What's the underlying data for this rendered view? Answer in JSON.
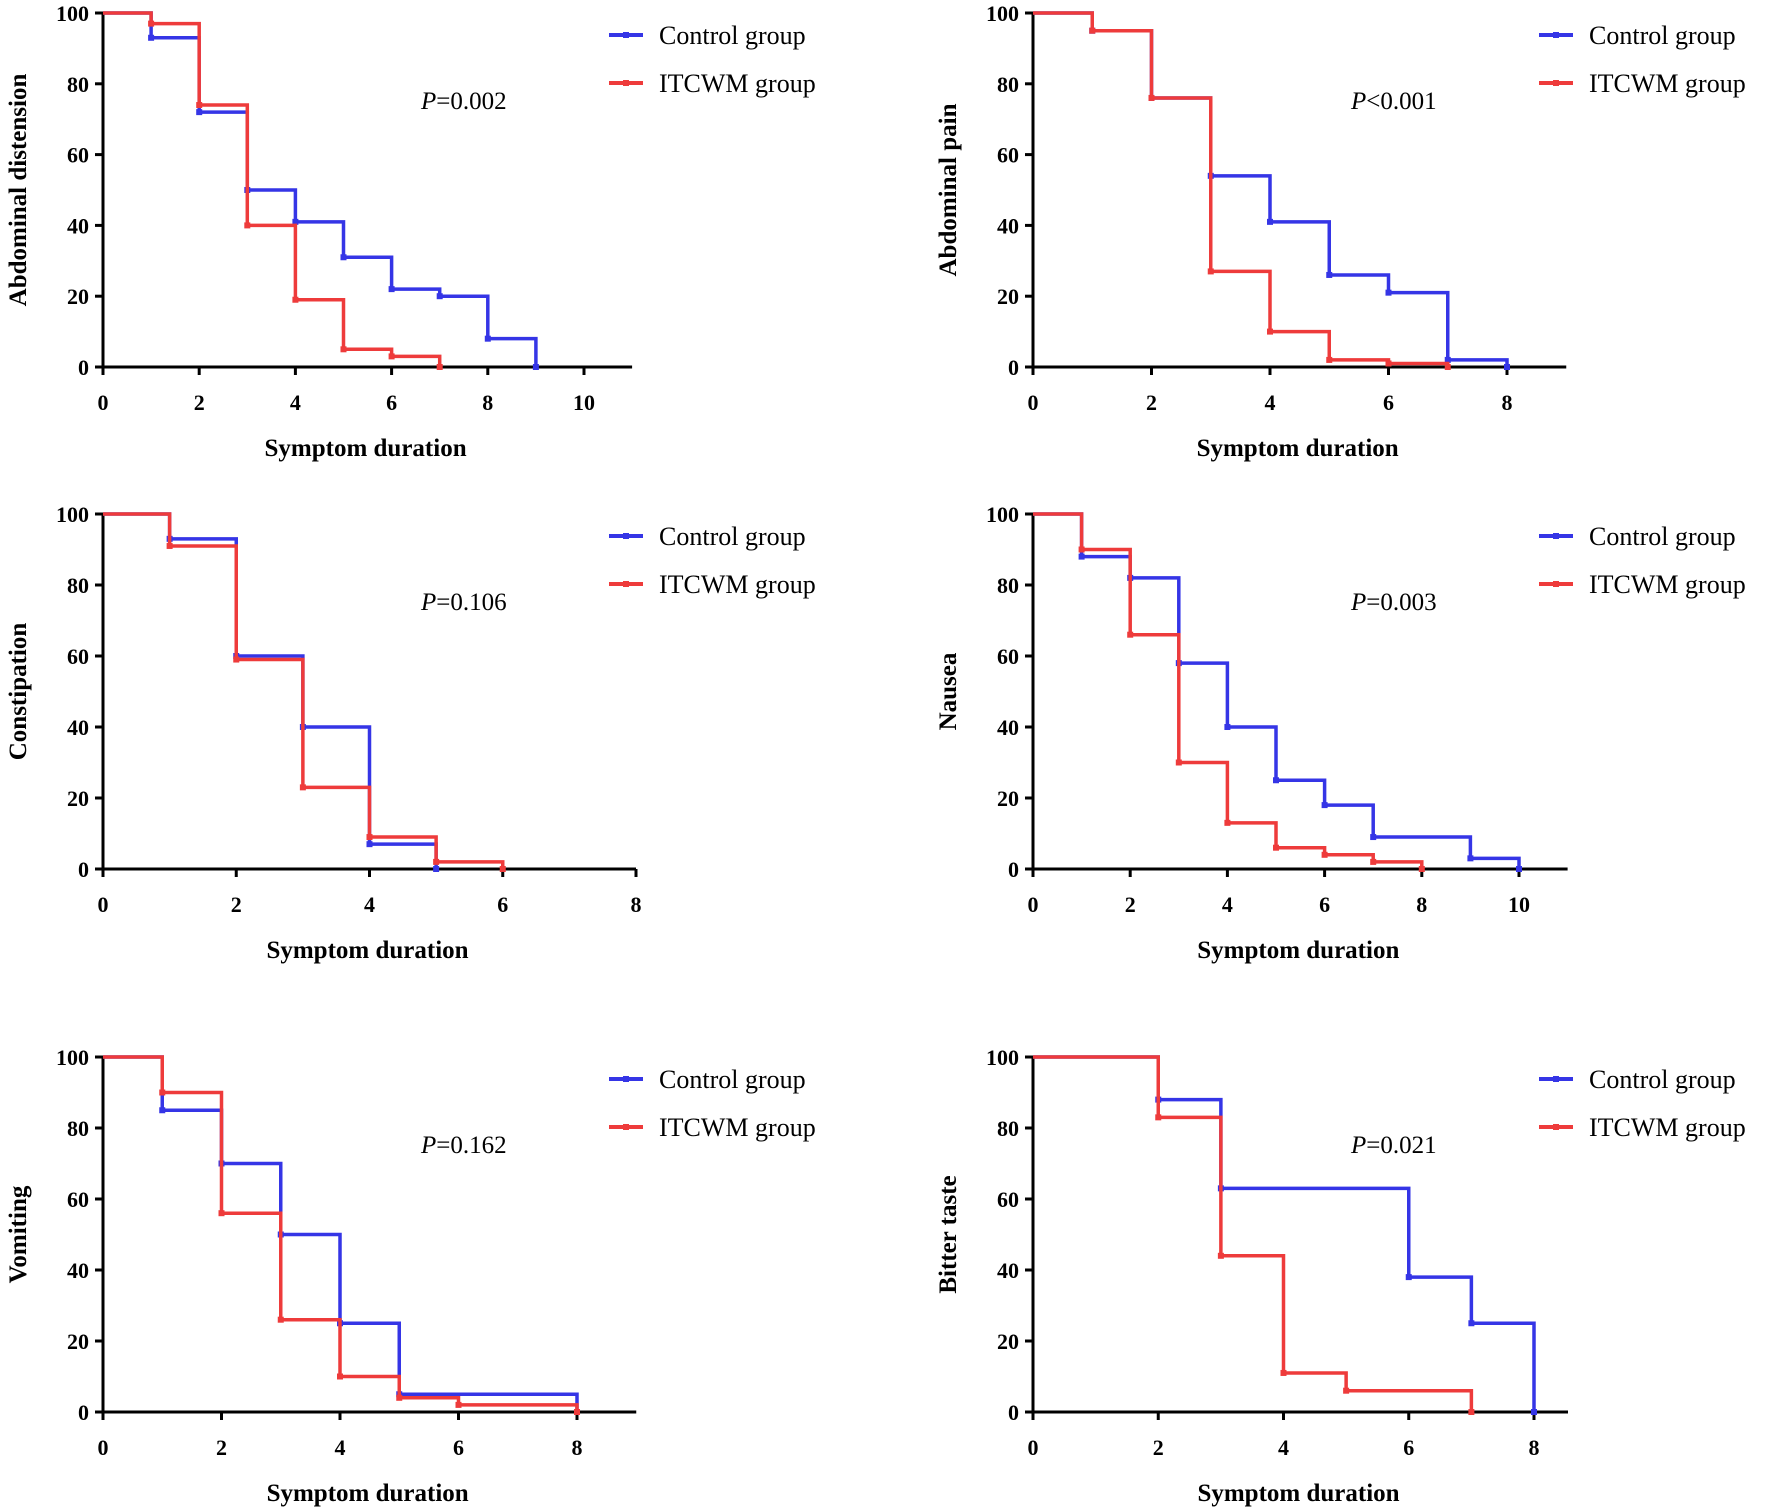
{
  "figure": {
    "colors": {
      "control": "#3535e6",
      "itcwm": "#ee3b3b",
      "axis": "#000000"
    }
  },
  "chart_data": [
    {
      "type": "line",
      "step": true,
      "ylabel": "Abdominal distension",
      "xlabel": "Symptom duration",
      "xlim": [
        0,
        11
      ],
      "ylim": [
        0,
        100
      ],
      "xticks": [
        0,
        2,
        4,
        6,
        8,
        10
      ],
      "yticks": [
        0,
        20,
        40,
        60,
        80,
        100
      ],
      "p_prefix": "P",
      "p_suffix": "=0.002",
      "legend_position": "top-right",
      "series": [
        {
          "name": "Control group",
          "color": "#3535e6",
          "x": [
            0,
            1,
            2,
            3,
            4,
            5,
            6,
            7,
            8,
            9
          ],
          "y": [
            100,
            93,
            72,
            50,
            41,
            31,
            22,
            20,
            8,
            0
          ]
        },
        {
          "name": "ITCWM group",
          "color": "#ee3b3b",
          "x": [
            0,
            1,
            2,
            3,
            4,
            5,
            6,
            7
          ],
          "y": [
            100,
            97,
            74,
            40,
            19,
            5,
            3,
            0
          ]
        }
      ]
    },
    {
      "type": "line",
      "step": true,
      "ylabel": "Abdominal  pain",
      "xlabel": "Symptom duration",
      "xlim": [
        0,
        9
      ],
      "ylim": [
        0,
        100
      ],
      "xticks": [
        0,
        2,
        4,
        6,
        8
      ],
      "yticks": [
        0,
        20,
        40,
        60,
        80,
        100
      ],
      "p_prefix": "P",
      "p_suffix": "<0.001",
      "legend_position": "top-right",
      "series": [
        {
          "name": "Control group",
          "color": "#3535e6",
          "x": [
            0,
            1,
            2,
            3,
            4,
            5,
            6,
            7,
            8
          ],
          "y": [
            100,
            95,
            76,
            54,
            41,
            26,
            21,
            2,
            0
          ]
        },
        {
          "name": "ITCWM group",
          "color": "#ee3b3b",
          "x": [
            0,
            1,
            2,
            3,
            4,
            5,
            6,
            7
          ],
          "y": [
            100,
            95,
            76,
            27,
            10,
            2,
            1,
            0
          ]
        }
      ]
    },
    {
      "type": "line",
      "step": true,
      "ylabel": "Constipation",
      "xlabel": "Symptom duration",
      "xlim": [
        0,
        8
      ],
      "ylim": [
        0,
        100
      ],
      "xticks": [
        0,
        2,
        4,
        6,
        8
      ],
      "yticks": [
        0,
        20,
        40,
        60,
        80,
        100
      ],
      "p_prefix": "P",
      "p_suffix": "=0.106",
      "legend_position": "top-right",
      "series": [
        {
          "name": "Control group",
          "color": "#3535e6",
          "x": [
            0,
            1,
            2,
            3,
            4,
            5
          ],
          "y": [
            100,
            93,
            60,
            40,
            7,
            0
          ]
        },
        {
          "name": "ITCWM group",
          "color": "#ee3b3b",
          "x": [
            0,
            1,
            2,
            3,
            4,
            5,
            6
          ],
          "y": [
            100,
            91,
            59,
            23,
            9,
            2,
            0
          ]
        }
      ]
    },
    {
      "type": "line",
      "step": true,
      "ylabel": "Nausea",
      "xlabel": "Symptom duration",
      "xlim": [
        0,
        11
      ],
      "ylim": [
        0,
        100
      ],
      "xticks": [
        0,
        2,
        4,
        6,
        8,
        10
      ],
      "yticks": [
        0,
        20,
        40,
        60,
        80,
        100
      ],
      "p_prefix": "P",
      "p_suffix": "=0.003",
      "legend_position": "top-right",
      "series": [
        {
          "name": "Control group",
          "color": "#3535e6",
          "x": [
            0,
            1,
            2,
            3,
            4,
            5,
            6,
            7,
            9,
            10
          ],
          "y": [
            100,
            88,
            82,
            58,
            40,
            25,
            18,
            9,
            3,
            0
          ]
        },
        {
          "name": "ITCWM group",
          "color": "#ee3b3b",
          "x": [
            0,
            1,
            2,
            3,
            4,
            5,
            6,
            7,
            8
          ],
          "y": [
            100,
            90,
            66,
            30,
            13,
            6,
            4,
            2,
            0
          ]
        }
      ]
    },
    {
      "type": "line",
      "step": true,
      "ylabel": "Vomiting",
      "xlabel": "Symptom duration",
      "xlim": [
        0,
        9
      ],
      "ylim": [
        0,
        100
      ],
      "xticks": [
        0,
        2,
        4,
        6,
        8
      ],
      "yticks": [
        0,
        20,
        40,
        60,
        80,
        100
      ],
      "p_prefix": "P",
      "p_suffix": "=0.162",
      "legend_position": "top-right",
      "series": [
        {
          "name": "Control group",
          "color": "#3535e6",
          "x": [
            0,
            1,
            2,
            3,
            4,
            5,
            8
          ],
          "y": [
            100,
            85,
            70,
            50,
            25,
            5,
            0
          ]
        },
        {
          "name": "ITCWM group",
          "color": "#ee3b3b",
          "x": [
            0,
            1,
            2,
            3,
            4,
            5,
            6,
            8
          ],
          "y": [
            100,
            90,
            56,
            26,
            10,
            4,
            2,
            0
          ]
        }
      ]
    },
    {
      "type": "line",
      "step": true,
      "ylabel": "Bitter taste",
      "xlabel": "Symptom duration",
      "xlim": [
        0,
        9
      ],
      "ylim": [
        0,
        100
      ],
      "xticks": [
        0,
        2,
        4,
        6,
        8
      ],
      "yticks": [
        0,
        20,
        40,
        60,
        80,
        100
      ],
      "p_prefix": "P",
      "p_suffix": "=0.021",
      "legend_position": "top-right",
      "series": [
        {
          "name": "Control group",
          "color": "#3535e6",
          "x": [
            0,
            2,
            3,
            6,
            7,
            8
          ],
          "y": [
            100,
            88,
            63,
            38,
            25,
            0
          ]
        },
        {
          "name": "ITCWM group",
          "color": "#ee3b3b",
          "x": [
            0,
            2,
            3,
            4,
            5,
            7
          ],
          "y": [
            100,
            83,
            44,
            11,
            6,
            0
          ]
        }
      ]
    }
  ]
}
